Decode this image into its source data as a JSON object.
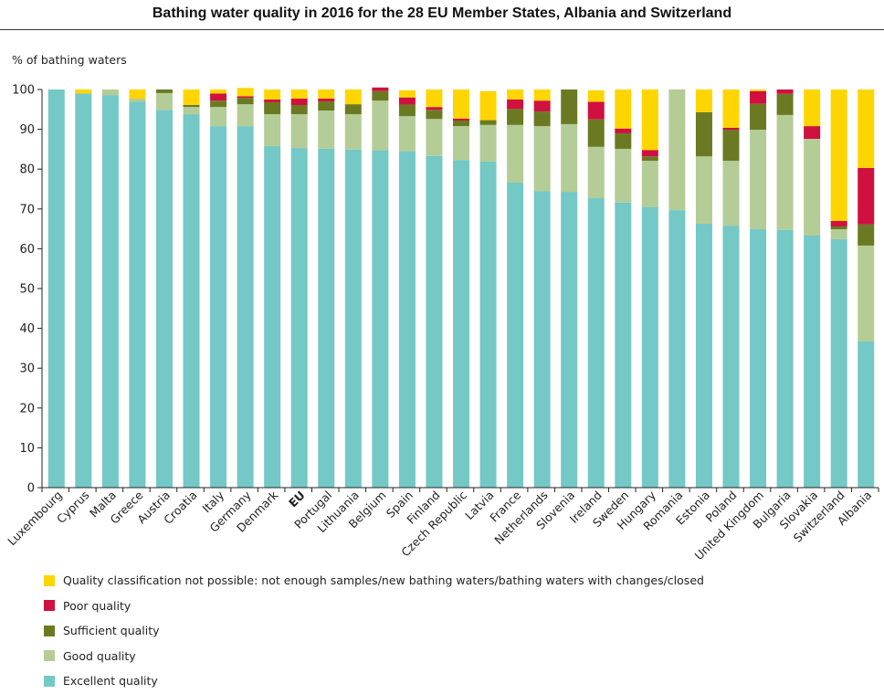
{
  "chart_data": {
    "type": "bar",
    "stacked": true,
    "title": "Bathing water quality in 2016 for the 28 EU Member States, Albania and Switzerland",
    "ylabel": "% of bathing waters",
    "xlabel": "",
    "ylim": [
      0,
      100
    ],
    "yticks": [
      0,
      10,
      20,
      30,
      40,
      50,
      60,
      70,
      80,
      90,
      100
    ],
    "grid": false,
    "legend_position": "bottom-left",
    "bold_categories": [
      "EU"
    ],
    "categories": [
      "Luxembourg",
      "Cyprus",
      "Malta",
      "Greece",
      "Austria",
      "Croatia",
      "Italy",
      "Germany",
      "Denmark",
      "EU",
      "Portugal",
      "Lithuania",
      "Belgium",
      "Spain",
      "Finland",
      "Czech Republic",
      "Latvia",
      "France",
      "Netherlands",
      "Slovenia",
      "Ireland",
      "Sweden",
      "Hungary",
      "Romania",
      "Estonia",
      "Poland",
      "United Kingdom",
      "Bulgaria",
      "Slovakia",
      "Switzerland",
      "Albania"
    ],
    "series": [
      {
        "name": "Excellent quality",
        "color": "#74c8c6",
        "values": [
          100,
          99.0,
          98.6,
          96.9,
          94.9,
          93.8,
          90.8,
          90.8,
          85.8,
          85.3,
          85.1,
          84.9,
          84.8,
          84.5,
          83.3,
          82.3,
          81.9,
          76.6,
          74.5,
          74.3,
          72.7,
          71.6,
          70.5,
          69.7,
          66.3,
          65.8,
          64.9,
          64.7,
          63.3,
          62.4,
          36.7
        ]
      },
      {
        "name": "Good quality",
        "color": "#b4cc96",
        "values": [
          0,
          0,
          1.4,
          0.8,
          4.2,
          1.8,
          4.8,
          5.5,
          8.0,
          8.5,
          9.6,
          8.9,
          12.4,
          8.8,
          9.3,
          8.5,
          9.2,
          14.5,
          16.3,
          17.0,
          12.9,
          13.5,
          11.6,
          30.3,
          16.9,
          16.3,
          25.0,
          28.9,
          24.3,
          2.5,
          24.1
        ]
      },
      {
        "name": "Sufficient quality",
        "color": "#6b7a22",
        "values": [
          0,
          0,
          0,
          0,
          0.9,
          0.5,
          1.6,
          1.6,
          3.0,
          2.3,
          2.3,
          2.5,
          2.4,
          2.9,
          2.3,
          1.4,
          1.2,
          4.0,
          3.7,
          8.7,
          6.9,
          3.9,
          1.1,
          0,
          11.1,
          7.8,
          6.5,
          5.3,
          0,
          0.7,
          5.3
        ]
      },
      {
        "name": "Poor quality",
        "color": "#d0103f",
        "values": [
          0,
          0,
          0,
          0,
          0,
          0,
          1.8,
          0.4,
          0.7,
          1.6,
          0.7,
          0,
          0.9,
          1.8,
          0.7,
          0.5,
          0,
          2.4,
          2.7,
          0,
          4.4,
          1.2,
          1.6,
          0,
          0,
          0.5,
          3.2,
          1.1,
          3.2,
          1.4,
          14.2
        ]
      },
      {
        "name": "Quality classification not possible: not enough samples/new bathing waters/bathing waters with changes/closed",
        "color": "#ffd500",
        "values": [
          0,
          1.0,
          0,
          2.3,
          0,
          3.9,
          1.0,
          2.1,
          2.5,
          2.3,
          2.3,
          3.7,
          0,
          1.8,
          4.4,
          7.3,
          7.3,
          2.5,
          2.8,
          0,
          2.9,
          9.8,
          15.2,
          0,
          5.7,
          9.6,
          0.4,
          0,
          9.2,
          33.0,
          19.7
        ]
      }
    ],
    "legend": [
      {
        "label": "Quality classification not possible: not enough samples/new bathing waters/bathing waters with changes/closed",
        "color": "#ffd500"
      },
      {
        "label": "Poor quality",
        "color": "#d0103f"
      },
      {
        "label": "Sufficient quality",
        "color": "#6b7a22"
      },
      {
        "label": "Good quality",
        "color": "#b4cc96"
      },
      {
        "label": "Excellent quality",
        "color": "#74c8c6"
      }
    ]
  }
}
